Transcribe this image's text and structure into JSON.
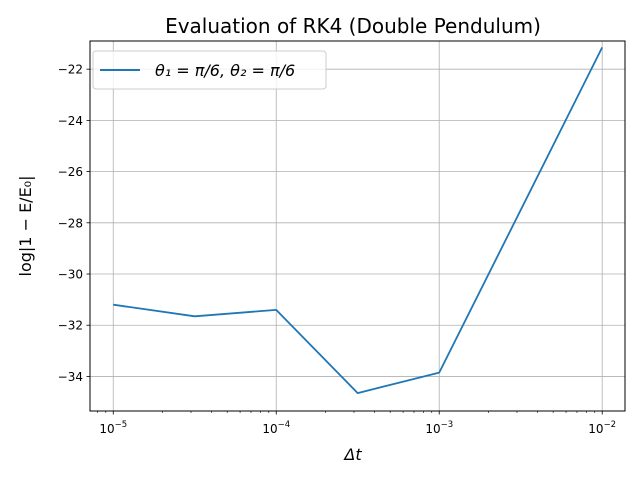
{
  "chart_data": {
    "type": "line",
    "title": "Evaluation of RK4 (Double Pendulum)",
    "xlabel": "Δt",
    "ylabel": "log|1 − E/E₀|",
    "x_scale": "log",
    "x_ticks": [
      1e-05,
      0.0001,
      0.001,
      0.01
    ],
    "x_tick_labels": [
      {
        "base": "10",
        "exp": "−5"
      },
      {
        "base": "10",
        "exp": "−4"
      },
      {
        "base": "10",
        "exp": "−3"
      },
      {
        "base": "10",
        "exp": "−2"
      }
    ],
    "xlim": [
      7.2e-06,
      0.0138
    ],
    "ylim": [
      -35.35,
      -20.9
    ],
    "y_ticks": [
      -22,
      -24,
      -26,
      -28,
      -30,
      -32,
      -34
    ],
    "y_tick_labels": [
      "−22",
      "−24",
      "−26",
      "−28",
      "−30",
      "−32",
      "−34"
    ],
    "grid": true,
    "legend_position": "top-left",
    "series": [
      {
        "name": "θ₁ = π/6, θ₂ = π/6",
        "color": "#1f77b4",
        "x": [
          1e-05,
          3.16e-05,
          0.0001,
          0.000316,
          0.001,
          0.01
        ],
        "y": [
          -31.2,
          -31.65,
          -31.4,
          -34.65,
          -33.85,
          -21.15
        ]
      }
    ]
  }
}
